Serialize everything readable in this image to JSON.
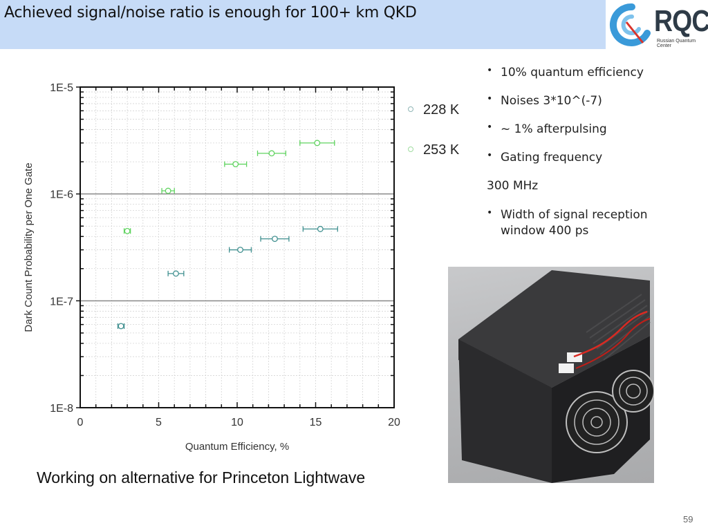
{
  "slide": {
    "title": "Achieved signal/noise ratio is enough for 100+ km QKD",
    "page_number": "59",
    "caption": "Working on alternative for Princeton Lightwave",
    "title_bar_color": "#c6dbf7"
  },
  "logo": {
    "wordmark": "RQC",
    "subtitle": "Russian Quantum Center",
    "icon": "rqc-q-logo-icon"
  },
  "bullets": [
    {
      "text": "10% quantum efficiency",
      "bullet": true
    },
    {
      "text": "Noises 3*10^(-7)",
      "bullet": true
    },
    {
      "text": "~ 1% afterpulsing",
      "bullet": true
    },
    {
      "text": "Gating frequency",
      "bullet": true
    },
    {
      "text": "300 MHz",
      "bullet": false
    },
    {
      "text": "Width of signal reception",
      "bullet": true,
      "continuation": "window 400 ps"
    }
  ],
  "photo": {
    "description": "black single-photon detector enclosure with heatsink fins and two cooling fans"
  },
  "chart_data": {
    "type": "scatter",
    "title": "",
    "xlabel": "Quantum Efficiency, %",
    "ylabel": "Dark Count Probability per One Gate",
    "xlim": [
      0,
      20
    ],
    "ylim": [
      1e-08,
      1e-05
    ],
    "yscale": "log",
    "x_ticks": [
      "0",
      "5",
      "10",
      "15",
      "20"
    ],
    "y_ticks": [
      "1E-8",
      "1E-7",
      "1E-6",
      "1E-5"
    ],
    "grid": true,
    "legend_position": "right-outside",
    "series": [
      {
        "name": "228 K",
        "color": "#3f8f8f",
        "points": [
          {
            "x": 2.6,
            "y": 5.8e-08,
            "xerr": 0.2
          },
          {
            "x": 6.1,
            "y": 1.8e-07,
            "xerr": 0.5
          },
          {
            "x": 10.2,
            "y": 3e-07,
            "xerr": 0.7
          },
          {
            "x": 12.4,
            "y": 3.8e-07,
            "xerr": 0.9
          },
          {
            "x": 15.3,
            "y": 4.7e-07,
            "xerr": 1.1
          }
        ]
      },
      {
        "name": "253 K",
        "color": "#5fd35f",
        "points": [
          {
            "x": 3.0,
            "y": 4.5e-07,
            "xerr": 0.2
          },
          {
            "x": 5.6,
            "y": 1.07e-06,
            "xerr": 0.4
          },
          {
            "x": 9.9,
            "y": 1.9e-06,
            "xerr": 0.7
          },
          {
            "x": 12.2,
            "y": 2.4e-06,
            "xerr": 0.9
          },
          {
            "x": 15.1,
            "y": 3e-06,
            "xerr": 1.1
          }
        ]
      }
    ]
  }
}
